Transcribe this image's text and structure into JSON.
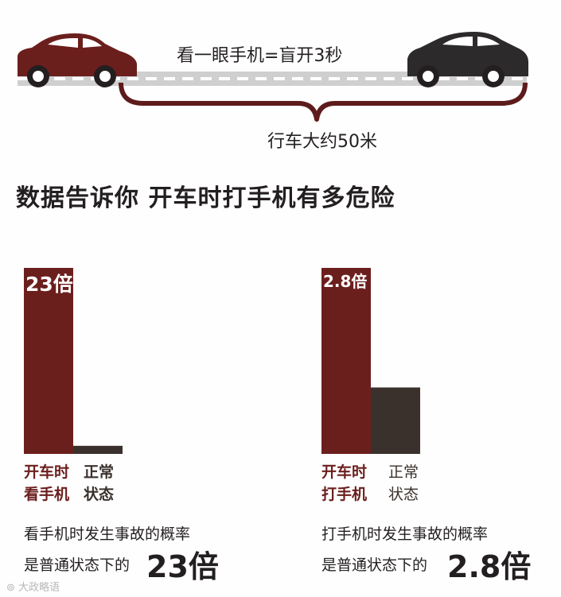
{
  "road": {
    "caption_top": "看一眼手机=盲开3秒",
    "caption_bottom": "行车大约50米"
  },
  "headline": "数据告诉你 开车时打手机有多危险",
  "chart_data": [
    {
      "type": "bar",
      "categories": [
        "开车时\n看手机",
        "正常\n状态"
      ],
      "values": [
        23,
        1
      ],
      "colors": [
        "#6b1f1d",
        "#3a312c"
      ],
      "value_label": "23倍",
      "desc_line1": "看手机时发生事故的概率",
      "desc_line2_prefix": "是普通状态下的",
      "desc_big": "23倍"
    },
    {
      "type": "bar",
      "categories": [
        "开车时\n打手机",
        "正常\n状态"
      ],
      "values": [
        2.8,
        1
      ],
      "colors": [
        "#6b1f1d",
        "#3a312c"
      ],
      "value_label": "2.8倍",
      "desc_line1": "打手机时发生事故的概率",
      "desc_line2_prefix": "是普通状态下的",
      "desc_big": "2.8倍"
    }
  ],
  "watermark": "大政略语"
}
